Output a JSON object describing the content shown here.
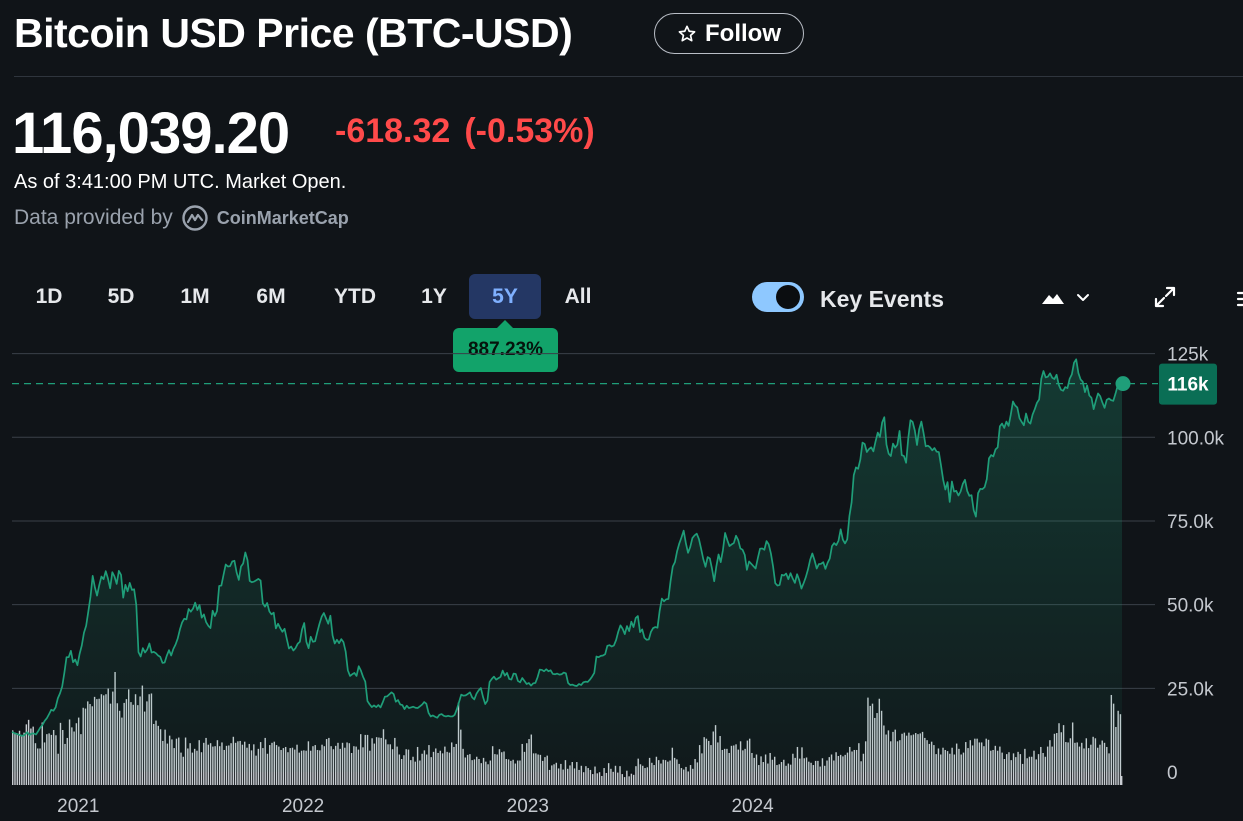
{
  "header": {
    "title": "Bitcoin USD Price (BTC-USD)",
    "follow_label": "Follow"
  },
  "quote": {
    "price": "116,039.20",
    "change": "-618.32",
    "change_pct": "(-0.53%)",
    "as_of": "As of 3:41:00 PM UTC. Market Open.",
    "data_provided_by": "Data provided by",
    "provider": "CoinMarketCap"
  },
  "toolbar": {
    "ranges": [
      "1D",
      "5D",
      "1M",
      "6M",
      "YTD",
      "1Y",
      "5Y",
      "All"
    ],
    "active_range": "5Y",
    "range_return": "887.23%",
    "key_events_label": "Key Events",
    "key_events_on": true
  },
  "colors": {
    "background": "#101418",
    "line": "#1f9e79",
    "negative": "#ff4a4a",
    "badge": "#12a36a",
    "active_range": "#243764",
    "current_tag": "#0a6e55"
  },
  "icons": {
    "follow": "star-outline-icon",
    "provider": "coinmarketcap-logo",
    "chart_type": "mountain-chart-icon",
    "dropdown": "chevron-down-icon",
    "expand": "expand-icon",
    "more": "more-icon"
  },
  "chart_data": {
    "type": "area",
    "x_labels": [
      "2021",
      "2022",
      "2023",
      "2024"
    ],
    "y_tick_labels": [
      "0",
      "25.0k",
      "50.0k",
      "75.0k",
      "100.0k",
      "125k"
    ],
    "ylim": [
      0,
      125000
    ],
    "grid": true,
    "current_value": 116039.2,
    "current_label": "116k",
    "series": [
      {
        "values": [
          12000,
          11600,
          11400,
          11200,
          10900,
          10800,
          11200,
          11900,
          11000,
          11500,
          11500,
          11200,
          12200,
          13300,
          14100,
          15300,
          16100,
          17300,
          18600,
          18300,
          19300,
          22000,
          23500,
          25500,
          29600,
          34300,
          34300,
          36200,
          32800,
          33600,
          31900,
          35300,
          37800,
          41600,
          43700,
          48000,
          52400,
          58600,
          55200,
          52700,
          55800,
          58400,
          57600,
          60000,
          57800,
          54900,
          59700,
          58400,
          56200,
          60100,
          58900,
          52100,
          55900,
          54000,
          56500,
          54400,
          54600,
          49900,
          35800,
          34500,
          37000,
          35700,
          36600,
          38400,
          35700,
          35900,
          35500,
          34800,
          34400,
          32600,
          32700,
          34800,
          36400,
          34800,
          36800,
          38100,
          39900,
          42600,
          44700,
          45800,
          45600,
          48700,
          47900,
          48800,
          50600,
          48400,
          49900,
          46100,
          47100,
          44800,
          43700,
          43000,
          48200,
          46600,
          48100,
          55600,
          55700,
          58900,
          62000,
          61400,
          61500,
          62900,
          63100,
          59600,
          57400,
          61400,
          62300,
          65600,
          63300,
          57100,
          56700,
          56900,
          57300,
          57700,
          57200,
          50400,
          49400,
          50500,
          48000,
          47100,
          47600,
          42900,
          44300,
          43000,
          41900,
          42800,
          39800,
          36900,
          37500,
          36300,
          37000,
          38300,
          38900,
          42600,
          44500,
          38900,
          37000,
          40400,
          38900,
          39100,
          41800,
          44300,
          46400,
          47500,
          45900,
          44300,
          46700,
          40800,
          38400,
          39500,
          38500,
          39700,
          38800,
          36000,
          30400,
          28700,
          29200,
          29600,
          28700,
          31600,
          30300,
          28400,
          27000,
          21200,
          20200,
          19400,
          19900,
          19400,
          20000,
          19300,
          20800,
          22500,
          22600,
          23200,
          23800,
          23300,
          21000,
          21500,
          20200,
          20000,
          18800,
          19800,
          19100,
          19300,
          19500,
          19200,
          19100,
          19600,
          20100,
          20900,
          20400,
          17700,
          16600,
          16900,
          16500,
          16200,
          17100,
          17300,
          16800,
          16600,
          16800,
          16600,
          16600,
          17100,
          18800,
          20900,
          23100,
          22800,
          22900,
          23300,
          23800,
          22300,
          21700,
          23400,
          24400,
          25100,
          22400,
          20300,
          21300,
          26900,
          27800,
          28500,
          27600,
          28000,
          28400,
          30300,
          28800,
          29600,
          27800,
          27600,
          29400,
          29300,
          27200,
          26800,
          28100,
          27200,
          26300,
          26600,
          25800,
          26500,
          26600,
          28300,
          30600,
          30500,
          30100,
          30700,
          30100,
          30400,
          29300,
          29200,
          29400,
          29100,
          29200,
          29700,
          29500,
          26600,
          26000,
          26100,
          25800,
          25700,
          26300,
          26000,
          26800,
          27000,
          26900,
          27600,
          28500,
          29600,
          34500,
          34300,
          34700,
          34800,
          35200,
          37700,
          37900,
          37500,
          37800,
          39400,
          41900,
          43800,
          42800,
          41200,
          43600,
          42100,
          44900,
          43300,
          46000,
          46600,
          41800,
          42600,
          40100,
          39500,
          39600,
          41900,
          43000,
          43300,
          43100,
          48200,
          51800,
          51000,
          51600,
          51700,
          57100,
          61400,
          62700,
          66000,
          68300,
          70100,
          72100,
          68400,
          65500,
          67200,
          69900,
          70700,
          71200,
          69600,
          66700,
          63600,
          61300,
          64200,
          63800,
          60700,
          57000,
          61500,
          65000,
          62700,
          66300,
          71400,
          69300,
          67500,
          68000,
          68400,
          70600,
          69300,
          66800,
          66400,
          64900,
          60400,
          62900,
          62200,
          61500,
          60800,
          63900,
          66700,
          66800,
          66400,
          69000,
          68000,
          65300,
          61400,
          56400,
          55700,
          55900,
          58900,
          58700,
          59300,
          57600,
          59400,
          57800,
          56500,
          59100,
          57300,
          54800,
          56400,
          58200,
          60500,
          63400,
          65300,
          63300,
          60800,
          62100,
          62200,
          62700,
          60700,
          62500,
          63800,
          67500,
          68400,
          67800,
          69100,
          72500,
          69400,
          68300,
          69500,
          76500,
          80500,
          88700,
          91000,
          90600,
          93300,
          98400,
          98000,
          95600,
          96500,
          97000,
          95800,
          98800,
          101400,
          100100,
          104400,
          106000,
          97800,
          95100,
          94400,
          98100,
          96900,
          97800,
          101900,
          94700,
          94400,
          92400,
          99800,
          105100,
          104600,
          102000,
          97700,
          102400,
          104700,
          101300,
          97300,
          97500,
          97000,
          96100,
          96800,
          95700,
          95600,
          91600,
          87300,
          84400,
          86600,
          80700,
          86800,
          83800,
          84000,
          82600,
          83800,
          86100,
          87300,
          84000,
          82500,
          82700,
          78200,
          76300,
          83300,
          84600,
          84500,
          85100,
          87500,
          93700,
          94700,
          94300,
          96400,
          97000,
          103300,
          104100,
          102800,
          104700,
          103400,
          106800,
          110700,
          109500,
          108900,
          105700,
          104600,
          103600,
          107100,
          104700,
          104100,
          106800,
          108400,
          110300,
          111300,
          117500,
          119800,
          117900,
          118100,
          119100,
          117800,
          117400,
          118700,
          115700,
          114200,
          113900,
          115000,
          114700,
          117500,
          118800,
          122300,
          123300,
          119200,
          117300,
          116600,
          113500,
          115500,
          112500,
          111800,
          108400,
          110900,
          113100,
          112300,
          110400,
          108800,
          111200,
          111600,
          111100,
          110900,
          113000,
          115400,
          115700,
          116000
        ]
      }
    ],
    "volume_scale": [
      0,
      30
    ],
    "volume": [
      14.5,
      13.9,
      13.5,
      14.4,
      13.3,
      13.9,
      16.1,
      17.3,
      15,
      15.5,
      11.1,
      9.7,
      9.7,
      16.6,
      11.3,
      13.5,
      13.7,
      13.3,
      14.6,
      13.2,
      8.3,
      16.5,
      14.6,
      10.9,
      12.5,
      17.4,
      15.3,
      14.2,
      16.4,
      17.9,
      13.5,
      20.5,
      20.3,
      22.2,
      21.5,
      20.9,
      23.4,
      22.8,
      22.9,
      24.1,
      23.8,
      24.1,
      25.6,
      21.6,
      24.8,
      30,
      21.7,
      19.7,
      17.9,
      21.8,
      22.8,
      25.4,
      22,
      21.3,
      24.1,
      21.2,
      23.5,
      26.4,
      19.5,
      22.2,
      24.1,
      24.3,
      16.2,
      17.1,
      15.7,
      14.8,
      11.7,
      14.7,
      11,
      13.1,
      12.1,
      9.8,
      12.3,
      12.6,
      8.6,
      7.5,
      12.6,
      9.7,
      11.1,
      8.6,
      9.6,
      9.1,
      11.9,
      8.7,
      11.2,
      12.5,
      10.7,
      11.1,
      10.2,
      10.3,
      11.9,
      10.3,
      11.3,
      9.3,
      10.4,
      10.5,
      11.1,
      12.8,
      11.2,
      11.6,
      11.7,
      10.7,
      11.5,
      9.9,
      10.9,
      9.2,
      10.8,
      7.8,
      9.6,
      11.4,
      9.8,
      12.5,
      8.3,
      10.6,
      11.2,
      11.5,
      10.6,
      10.2,
      9.3,
      9.8,
      10.1,
      8.7,
      9.8,
      9.9,
      9.4,
      10.7,
      8.6,
      9.1,
      9.2,
      9.1,
      11.6,
      9.1,
      10.3,
      10.6,
      9.3,
      9.2,
      10.7,
      10.3,
      12.2,
      12.5,
      10.3,
      9.5,
      10.4,
      11.2,
      9.6,
      11.2,
      9.9,
      11.3,
      11.1,
      8.5,
      10.3,
      10.2,
      9.4,
      13.5,
      10,
      13.3,
      13.3,
      9.1,
      12.4,
      11,
      12.7,
      12.6,
      12.5,
      14.8,
      12.1,
      10.8,
      10.8,
      9.5,
      12.5,
      10.2,
      8.1,
      6.9,
      7.9,
      9.5,
      9.4,
      6.6,
      7.5,
      6.2,
      10.1,
      6.5,
      8.3,
      9.2,
      8.1,
      10.6,
      7.4,
      8.8,
      9.7,
      8.5,
      9.1,
      8.4,
      10.2,
      8.8,
      8.6,
      11.3,
      10.1,
      10.9,
      21.9,
      14.7,
      9.6,
      7.3,
      8,
      8.2,
      6.6,
      6.8,
      7.5,
      6.9,
      5.8,
      7.2,
      6.2,
      5.5,
      6.5,
      10.3,
      8.2,
      8.1,
      9.5,
      8.7,
      8.9,
      6.9,
      6.8,
      6.4,
      6.7,
      5.7,
      6.5,
      6.5,
      10.9,
      8.8,
      11.1,
      12.2,
      13.4,
      8.4,
      8.4,
      8.1,
      8,
      6.4,
      7.4,
      7.8,
      4,
      5.2,
      5.5,
      5.9,
      4.4,
      5.6,
      4.1,
      6.6,
      4.3,
      5.2,
      6.1,
      4.4,
      6.1,
      4,
      5.1,
      3.4,
      5,
      4.5,
      4,
      2.9,
      4.9,
      3.1,
      3.4,
      2.4,
      4.5,
      3.2,
      5.8,
      4.3,
      3.5,
      5.1,
      3.3,
      5,
      2.9,
      2.1,
      3.8,
      2.3,
      3,
      2.7,
      5,
      7,
      5.5,
      5.1,
      4.5,
      4.7,
      7.2,
      5.9,
      5.3,
      7.5,
      6.6,
      5.7,
      6.7,
      6.6,
      6.2,
      6.5,
      9.9,
      7.2,
      6.8,
      5.6,
      4.5,
      4.1,
      4.8,
      3.6,
      5.3,
      4.3,
      6.9,
      6,
      10.6,
      8.4,
      12.7,
      12.3,
      11.7,
      10.6,
      14.2,
      15.9,
      11.3,
      13,
      9.3,
      9.6,
      9.6,
      8.5,
      10.4,
      10.5,
      10.8,
      9.4,
      11.6,
      9.2,
      9.6,
      11.8,
      12.3,
      8.5,
      7.2,
      8.1,
      5.3,
      7.6,
      6.1,
      8.1,
      5.7,
      8.5,
      6.7,
      7.5,
      5.3,
      5.5,
      6.1,
      6.7,
      5.1,
      5.7,
      5.4,
      8.3,
      7.2,
      10.1,
      7,
      10,
      7.1,
      7.3,
      6.2,
      5.9,
      5.3,
      6.4,
      6.4,
      4.9,
      7.1,
      5.1,
      6.5,
      7.4,
      8.1,
      6.5,
      8.7,
      7.7,
      8,
      7.6,
      8,
      8.6,
      10.1,
      8.9,
      9.3,
      9.3,
      11.1,
      6.3,
      8.3,
      11.6,
      23.2,
      21,
      21.6,
      17.8,
      19.1,
      22.9,
      19.7,
      15.8,
      13.4,
      14.5,
      11.6,
      14.1,
      14.7,
      11.6,
      11.9,
      13.6,
      13.9,
      13.1,
      13.9,
      13.2,
      13.4,
      13.8,
      13.5,
      13.7,
      14.1,
      12.5,
      11.9,
      10.9,
      11.5,
      10.6,
      8.2,
      9.7,
      8.1,
      9.9,
      9.3,
      9,
      8.3,
      9.9,
      8.1,
      11,
      9.6,
      8.1,
      8.6,
      11.4,
      9.8,
      11.9,
      10.5,
      12.3,
      12.3,
      11.3,
      11.3,
      10.3,
      12.3,
      12,
      9.1,
      9.3,
      10.4,
      9.1,
      10.2,
      8.6,
      6.9,
      8.2,
      8.7,
      6.6,
      8.4,
      7.4,
      8.8,
      8.2,
      5.6,
      9.6,
      7.1,
      7.5,
      7.5,
      9.1,
      6.8,
      8.2,
      10.1,
      8.5,
      7.5,
      10.2,
      11.9,
      10.2,
      13.6,
      13.8,
      16.4,
      14,
      15.9,
      11.4,
      11.3,
      12.4,
      16.6,
      11.2,
      11.3,
      10.2,
      11.2,
      9.7,
      12.4,
      9.8,
      10.7,
      12.8,
      12.4,
      9.9,
      10.7,
      11.8,
      11.2,
      10.1,
      8.4,
      23.9,
      21.6,
      15.4,
      19.7,
      18.8
    ]
  }
}
